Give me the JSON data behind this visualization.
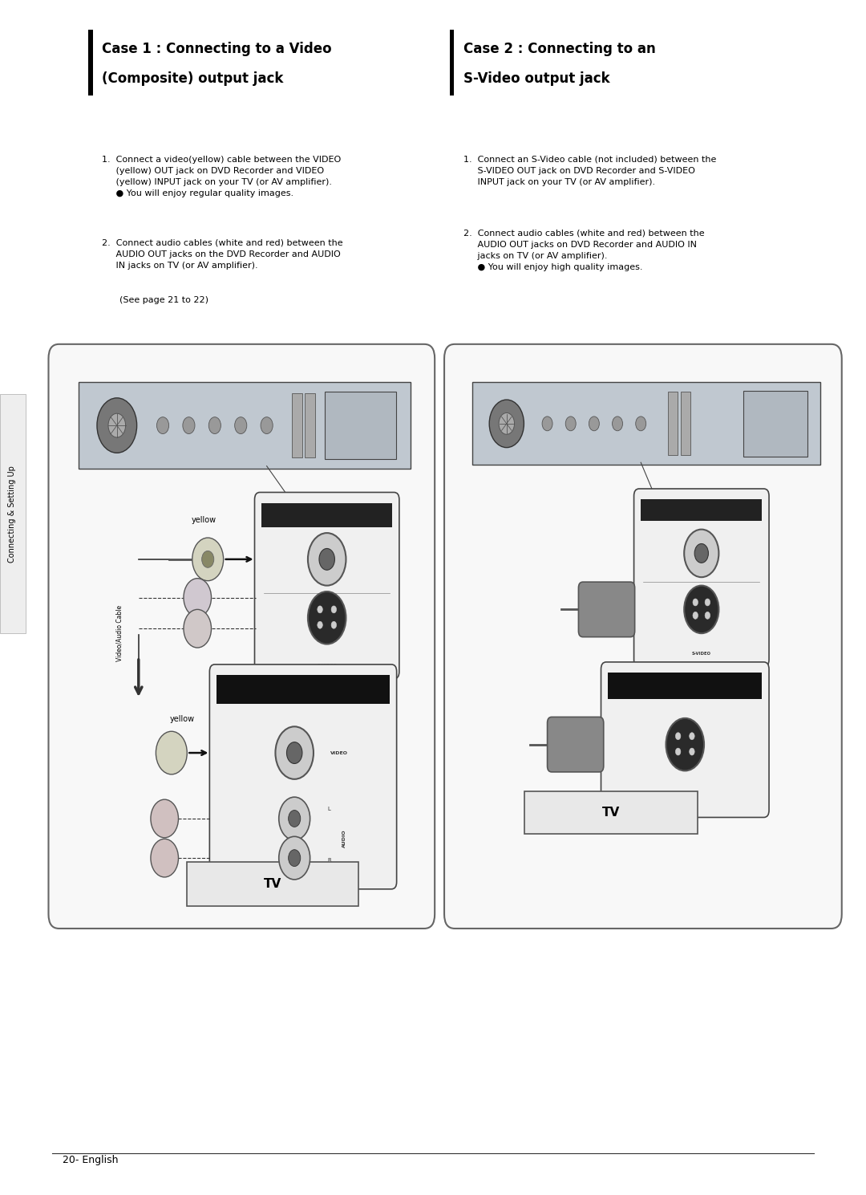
{
  "bg_color": "#ffffff",
  "page_width": 10.8,
  "page_height": 14.89,
  "sidebar_text": "Connecting & Setting Up",
  "page_number": "20- English",
  "case1_title_line1": "Case 1 : Connecting to a Video",
  "case1_title_line2": "(Composite) output jack",
  "case2_title_line1": "Case 2 : Connecting to an",
  "case2_title_line2": "S-Video output jack"
}
